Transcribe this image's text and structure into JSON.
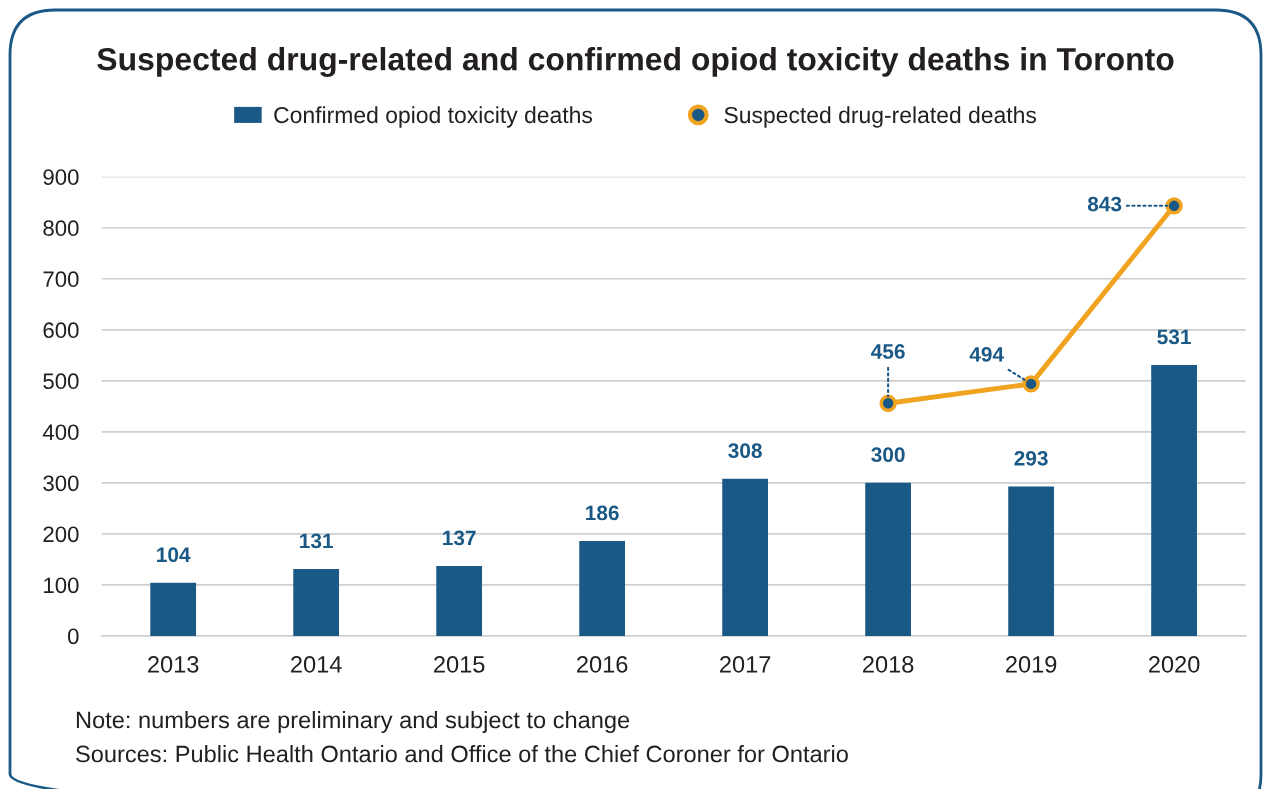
{
  "chart_data": {
    "type": "bar",
    "title": "Suspected drug-related and confirmed opiod toxicity deaths in Toronto",
    "categories": [
      "2013",
      "2014",
      "2015",
      "2016",
      "2017",
      "2018",
      "2019",
      "2020"
    ],
    "series": [
      {
        "name": "Confirmed opiod toxicity deaths",
        "color": "#1a5886",
        "values": [
          104,
          131,
          137,
          186,
          308,
          300,
          293,
          531
        ]
      },
      {
        "name": "Suspected drug-related deaths",
        "type": "line",
        "color": "#f0a31f",
        "marker": "circle",
        "line_style": "solid",
        "values": [
          null,
          null,
          null,
          null,
          null,
          456,
          494,
          843
        ]
      }
    ],
    "ylim": [
      0,
      900
    ],
    "yticks": [
      0,
      100,
      200,
      300,
      400,
      500,
      600,
      700,
      800,
      900
    ],
    "grid": "y",
    "legend": "top",
    "data_labels": true,
    "annotations": [
      "Note: numbers are preliminary and subject to change",
      "Sources: Public Health Ontario and Office of the Chief Coroner for Ontario"
    ]
  }
}
